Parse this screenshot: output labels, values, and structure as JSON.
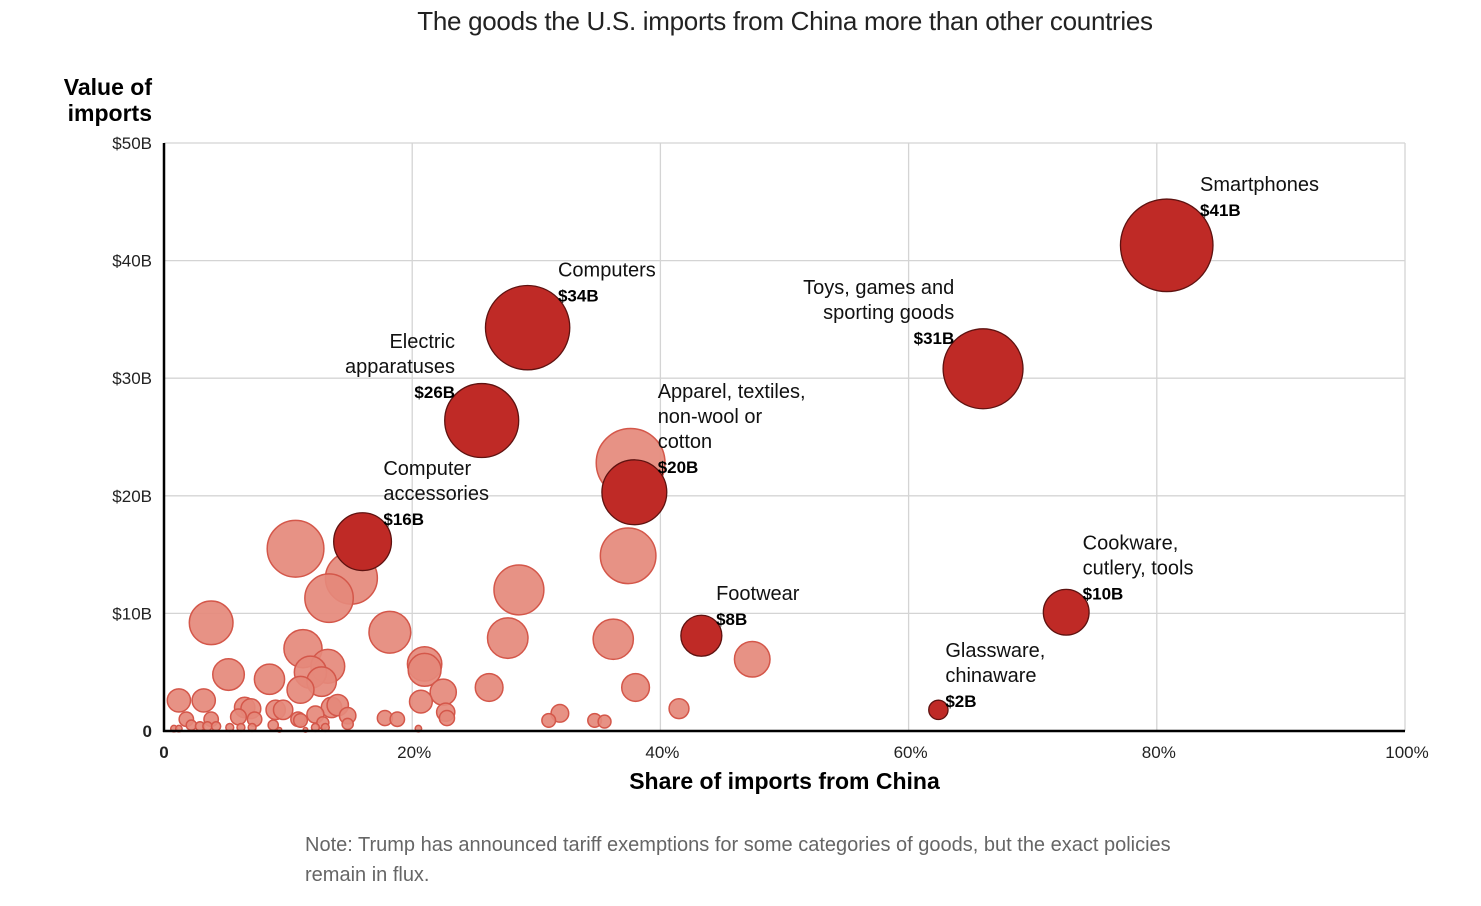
{
  "chart_data": {
    "type": "scatter",
    "subtype": "bubble",
    "title": "The goods the U.S. imports from China more than other countries",
    "xlabel": "Share of imports from China",
    "ylabel": "Value of imports",
    "xlim": [
      0,
      100
    ],
    "ylim": [
      0,
      50
    ],
    "x_ticks": [
      0,
      20,
      40,
      60,
      80,
      100
    ],
    "x_tick_labels": [
      "0",
      "20%",
      "40%",
      "60%",
      "80%",
      "100%"
    ],
    "y_ticks": [
      0,
      10,
      20,
      30,
      40,
      50
    ],
    "y_tick_labels": [
      "0",
      "$10B",
      "$20B",
      "$30B",
      "$40B",
      "$50B"
    ],
    "grid": true,
    "size_encoding": "value of imports",
    "colors": {
      "highlight": "#bf2a26",
      "highlight_stroke": "#5e1210",
      "background": "#e5897b",
      "background_stroke": "#d4574a",
      "grid": "#d4d4d4",
      "axis": "#000000"
    },
    "highlighted": [
      {
        "name": "Smartphones",
        "label_lines": [
          "Smartphones"
        ],
        "value_label": "$41B",
        "x": 80.8,
        "y": 41.3,
        "label_side": "right-above"
      },
      {
        "name": "Computers",
        "label_lines": [
          "Computers"
        ],
        "value_label": "$34B",
        "x": 29.3,
        "y": 34.3,
        "label_side": "right-above"
      },
      {
        "name": "Toys, games and sporting goods",
        "label_lines": [
          "Toys, games and",
          "sporting goods"
        ],
        "value_label": "$31B",
        "x": 66.0,
        "y": 30.8,
        "label_side": "left-above"
      },
      {
        "name": "Electric apparatuses",
        "label_lines": [
          "Electric",
          "apparatuses"
        ],
        "value_label": "$26B",
        "x": 25.6,
        "y": 26.4,
        "label_side": "left-above"
      },
      {
        "name": "Apparel, textiles, non-wool or cotton",
        "label_lines": [
          "Apparel, textiles,",
          "non-wool or",
          "cotton"
        ],
        "value_label": "$20B",
        "x": 37.9,
        "y": 20.3,
        "label_side": "right-above"
      },
      {
        "name": "Computer accessories",
        "label_lines": [
          "Computer",
          "accessories"
        ],
        "value_label": "$16B",
        "x": 16.0,
        "y": 16.1,
        "label_side": "right-above"
      },
      {
        "name": "Cookware, cutlery, tools",
        "label_lines": [
          "Cookware,",
          "cutlery, tools"
        ],
        "value_label": "$10B",
        "x": 72.7,
        "y": 10.1,
        "label_side": "right-above"
      },
      {
        "name": "Footwear",
        "label_lines": [
          "Footwear"
        ],
        "value_label": "$8B",
        "x": 43.3,
        "y": 8.1,
        "label_side": "right-above"
      },
      {
        "name": "Glassware, chinaware",
        "label_lines": [
          "Glassware,",
          "chinaware"
        ],
        "value_label": "$2B",
        "x": 62.4,
        "y": 1.8,
        "label_side": "right-above"
      }
    ],
    "other_points": [
      {
        "x": 37.6,
        "y": 22.8
      },
      {
        "x": 10.6,
        "y": 15.5
      },
      {
        "x": 15.1,
        "y": 13.0
      },
      {
        "x": 13.3,
        "y": 11.3
      },
      {
        "x": 3.8,
        "y": 9.2
      },
      {
        "x": 28.6,
        "y": 12.0
      },
      {
        "x": 37.4,
        "y": 14.9
      },
      {
        "x": 18.2,
        "y": 8.4
      },
      {
        "x": 27.7,
        "y": 7.9
      },
      {
        "x": 36.2,
        "y": 7.8
      },
      {
        "x": 47.4,
        "y": 6.1
      },
      {
        "x": 11.2,
        "y": 7.0
      },
      {
        "x": 13.2,
        "y": 5.5
      },
      {
        "x": 11.8,
        "y": 5.0
      },
      {
        "x": 12.7,
        "y": 4.2
      },
      {
        "x": 11.0,
        "y": 3.5
      },
      {
        "x": 5.2,
        "y": 4.8
      },
      {
        "x": 8.5,
        "y": 4.4
      },
      {
        "x": 21.0,
        "y": 5.7
      },
      {
        "x": 21.0,
        "y": 5.2
      },
      {
        "x": 22.5,
        "y": 3.3
      },
      {
        "x": 20.7,
        "y": 2.5
      },
      {
        "x": 26.2,
        "y": 3.7
      },
      {
        "x": 38.0,
        "y": 3.7
      },
      {
        "x": 41.5,
        "y": 1.9
      },
      {
        "x": 1.2,
        "y": 2.6
      },
      {
        "x": 3.2,
        "y": 2.6
      },
      {
        "x": 6.5,
        "y": 2.0
      },
      {
        "x": 7.0,
        "y": 1.9
      },
      {
        "x": 9.0,
        "y": 1.8
      },
      {
        "x": 9.6,
        "y": 1.8
      },
      {
        "x": 13.5,
        "y": 2.0
      },
      {
        "x": 14.0,
        "y": 2.2
      },
      {
        "x": 6.0,
        "y": 1.2
      },
      {
        "x": 12.2,
        "y": 1.4
      },
      {
        "x": 14.8,
        "y": 1.3
      },
      {
        "x": 22.7,
        "y": 1.6
      },
      {
        "x": 22.8,
        "y": 1.1
      },
      {
        "x": 17.8,
        "y": 1.1
      },
      {
        "x": 18.8,
        "y": 1.0
      },
      {
        "x": 31.9,
        "y": 1.5
      },
      {
        "x": 31.0,
        "y": 0.9
      },
      {
        "x": 34.7,
        "y": 0.9
      },
      {
        "x": 35.5,
        "y": 0.8
      },
      {
        "x": 1.8,
        "y": 1.0
      },
      {
        "x": 3.8,
        "y": 1.0
      },
      {
        "x": 7.3,
        "y": 1.0
      },
      {
        "x": 10.8,
        "y": 1.0
      },
      {
        "x": 11.0,
        "y": 0.9
      },
      {
        "x": 12.8,
        "y": 0.7
      },
      {
        "x": 14.8,
        "y": 0.6
      },
      {
        "x": 2.2,
        "y": 0.5
      },
      {
        "x": 2.9,
        "y": 0.4
      },
      {
        "x": 3.5,
        "y": 0.4
      },
      {
        "x": 4.2,
        "y": 0.4
      },
      {
        "x": 5.3,
        "y": 0.3
      },
      {
        "x": 6.2,
        "y": 0.3
      },
      {
        "x": 7.1,
        "y": 0.3
      },
      {
        "x": 8.8,
        "y": 0.5
      },
      {
        "x": 12.2,
        "y": 0.3
      },
      {
        "x": 13.0,
        "y": 0.3
      },
      {
        "x": 0.8,
        "y": 0.2
      },
      {
        "x": 1.2,
        "y": 0.2
      },
      {
        "x": 20.5,
        "y": 0.2
      },
      {
        "x": 11.4,
        "y": 0.1
      },
      {
        "x": 9.3,
        "y": 0.1
      }
    ]
  },
  "note": "Note: Trump has announced tariff exemptions for some categories of goods, but the exact policies remain in flux."
}
